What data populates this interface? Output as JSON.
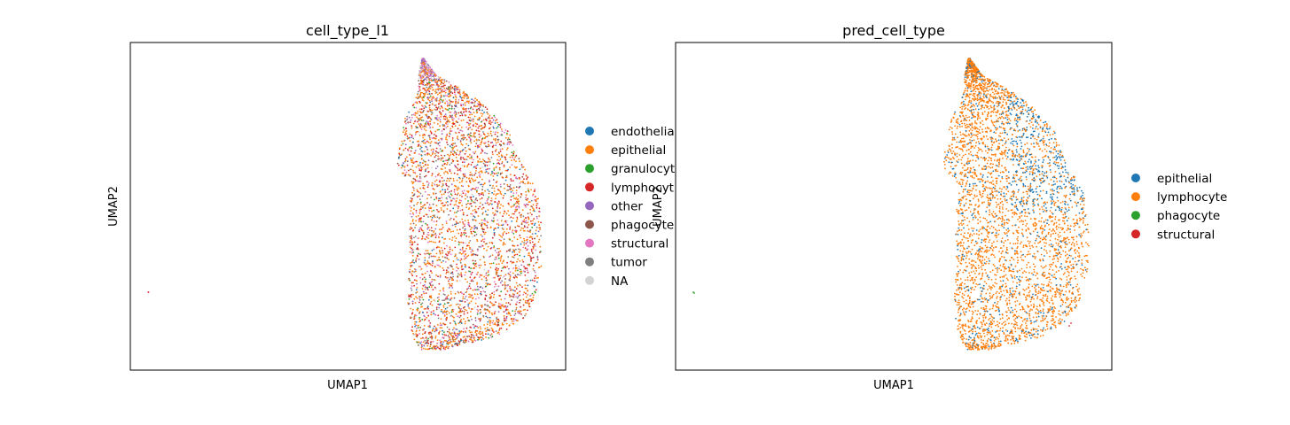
{
  "chart_data": [
    {
      "type": "scatter",
      "title": "cell_type_l1",
      "xlabel": "UMAP1",
      "ylabel": "UMAP2",
      "grid": false,
      "ticks": false,
      "legend_position": "right (clipped by next panel)",
      "categories": [
        "endothelial",
        "epithelial",
        "granulocyte",
        "lymphocyte",
        "other",
        "phagocyte",
        "structural",
        "tumor",
        "NA"
      ],
      "legend_labels_visible": [
        "endothelia",
        "epithelial",
        "granulocyt",
        "lymphocyt",
        "other",
        "phagocyte",
        "structural",
        "tumor",
        "NA"
      ],
      "colors": [
        "#1f77b4",
        "#ff7f0e",
        "#2ca02c",
        "#d62728",
        "#9467bd",
        "#8c564b",
        "#e377c2",
        "#7f7f7f",
        "#d3d3d3"
      ],
      "mixture_weights": [
        0.04,
        0.42,
        0.04,
        0.2,
        0.06,
        0.06,
        0.1,
        0.06,
        0.02
      ],
      "top_tip_colors": [
        "#9467bd",
        "#d3d3d3",
        "#e377c2"
      ],
      "outlier_cluster_colors": [
        "#e377c2",
        "#d62728"
      ],
      "dominant_category": "epithelial"
    },
    {
      "type": "scatter",
      "title": "pred_cell_type",
      "xlabel": "UMAP1",
      "ylabel": "UMAP2",
      "grid": false,
      "ticks": false,
      "legend_position": "right",
      "categories": [
        "epithelial",
        "lymphocyte",
        "phagocyte",
        "structural"
      ],
      "colors": [
        "#1f77b4",
        "#ff7f0e",
        "#2ca02c",
        "#d62728"
      ],
      "dominant_category": "lymphocyte",
      "blue_concentration": "upper-right lobe",
      "outlier_cluster_colors": [
        "#2ca02c"
      ]
    }
  ]
}
